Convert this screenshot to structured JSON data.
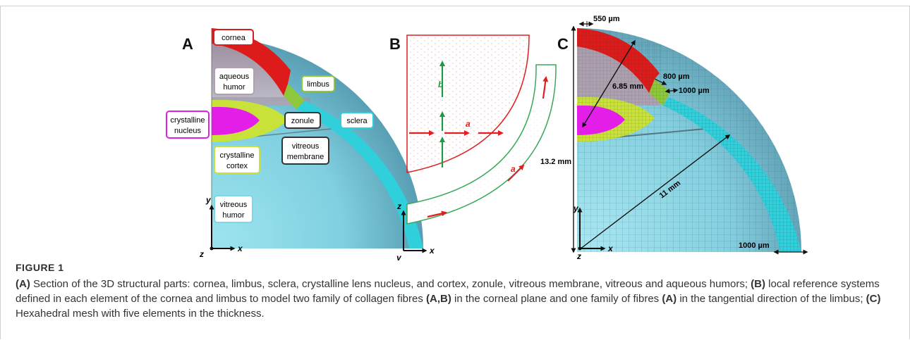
{
  "figure": {
    "label": "FIGURE 1",
    "caption": [
      {
        "b": "(A)",
        "t": " Section of the 3D structural parts: cornea, limbus, sclera, crystalline lens nucleus, and cortex, zonule, vitreous membrane, vitreous and aqueous humors; "
      },
      {
        "b": "(B)",
        "t": " local reference systems defined in each element of the cornea and limbus to model two family of collagen fibres "
      },
      {
        "b": "(A,B)",
        "t": " in the corneal plane and one family of fibres "
      },
      {
        "b": "(A)",
        "t": " in the tangential direction of the limbus; "
      },
      {
        "b": "(C)",
        "t": " Hexahedral mesh with five elements in the thickness."
      }
    ]
  },
  "panels": {
    "a": {
      "letter": "A",
      "labels": {
        "cornea": "cornea",
        "aqueous1": "aqueous",
        "aqueous2": "humor",
        "limbus": "limbus",
        "nucleus1": "crystalline",
        "nucleus2": "nucleus",
        "zonule": "zonule",
        "sclera": "sclera",
        "vmem1": "vitreous",
        "vmem2": "membrane",
        "cortex1": "crystalline",
        "cortex2": "cortex",
        "vhumor1": "vitreous",
        "vhumor2": "humor"
      },
      "axes": {
        "x": "x",
        "y": "y",
        "z": "z"
      }
    },
    "b": {
      "letter": "B",
      "labels": {
        "a1": "a",
        "b": "b",
        "a2": "a"
      },
      "axes": {
        "x": "x",
        "y": "y",
        "z": "z"
      }
    },
    "c": {
      "letter": "C",
      "dims": {
        "d550": "550 µm",
        "d800": "800 µm",
        "d1000top": "1000 µm",
        "r685": "6.85 mm",
        "h132": "13.2 mm",
        "r11": "11 mm",
        "d1000bot": "1000 µm"
      },
      "axes": {
        "x": "x",
        "y": "y",
        "z": "z"
      }
    }
  },
  "colors": {
    "cornea": "#dd1b1b",
    "limbus": "#8dc83a",
    "sclera": "#2fd0dc",
    "vitreous": "#7fd6e6",
    "nucleus": "#e21ee8",
    "cortex": "#c9e23a",
    "aqueous": "#b8a3b6",
    "green_arrow": "#1e9a44",
    "red_arrow": "#e02020"
  }
}
